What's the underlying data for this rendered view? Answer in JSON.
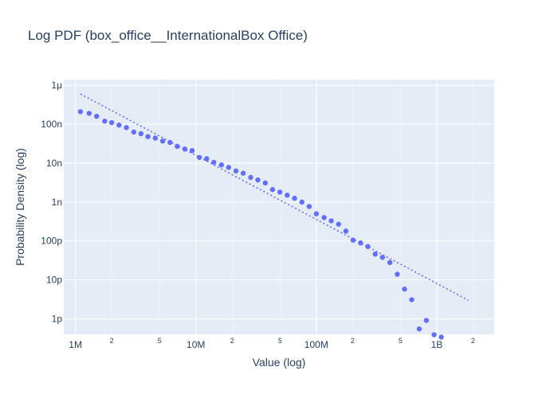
{
  "chart_data": {
    "type": "scatter",
    "title": "Log PDF (box_office__InternationalBox Office)",
    "xlabel": "Value (log)",
    "ylabel": "Probability Density (log)",
    "x_scale": "log",
    "y_scale": "log",
    "xlim": [
      800000,
      3000000000
    ],
    "ylim": [
      4e-13,
      1.4e-06
    ],
    "grid": true,
    "colors": {
      "plot_bg": "#e5ecf6",
      "grid": "#ffffff",
      "marker": "#636efa",
      "text": "#2a3f5f"
    },
    "x_ticks": [
      {
        "value": 1000000,
        "label": "1M"
      },
      {
        "value": 10000000,
        "label": "10M"
      },
      {
        "value": 100000000,
        "label": "100M"
      },
      {
        "value": 1000000000,
        "label": "1B"
      }
    ],
    "x_minor_ticks": [
      {
        "value": 2000000,
        "label": "2"
      },
      {
        "value": 5000000,
        "label": "5"
      },
      {
        "value": 20000000,
        "label": "2"
      },
      {
        "value": 50000000,
        "label": "5"
      },
      {
        "value": 200000000,
        "label": "2"
      },
      {
        "value": 500000000,
        "label": "5"
      },
      {
        "value": 2000000000,
        "label": "2"
      }
    ],
    "y_ticks": [
      {
        "value": 1e-06,
        "label": "1μ"
      },
      {
        "value": 1e-07,
        "label": "100n"
      },
      {
        "value": 1e-08,
        "label": "10n"
      },
      {
        "value": 1e-09,
        "label": "1n"
      },
      {
        "value": 1e-10,
        "label": "100p"
      },
      {
        "value": 1e-11,
        "label": "10p"
      },
      {
        "value": 1e-12,
        "label": "1p"
      }
    ],
    "series": [
      {
        "mode": "markers",
        "color": "#636efa",
        "points": [
          [
            1100000,
            2.1e-07
          ],
          [
            1300000,
            1.9e-07
          ],
          [
            1500000,
            1.6e-07
          ],
          [
            1750000,
            1.2e-07
          ],
          [
            2000000,
            1.1e-07
          ],
          [
            2300000,
            9.5e-08
          ],
          [
            2650000,
            8.2e-08
          ],
          [
            3050000,
            6.3e-08
          ],
          [
            3500000,
            5.7e-08
          ],
          [
            4000000,
            4.8e-08
          ],
          [
            4600000,
            4.4e-08
          ],
          [
            5300000,
            3.7e-08
          ],
          [
            6100000,
            3.4e-08
          ],
          [
            7000000,
            2.7e-08
          ],
          [
            8100000,
            2.3e-08
          ],
          [
            9300000,
            2.1e-08
          ],
          [
            10700000,
            1.4e-08
          ],
          [
            12300000,
            1.3e-08
          ],
          [
            14100000,
            1.05e-08
          ],
          [
            16300000,
            9e-09
          ],
          [
            18700000,
            7.8e-09
          ],
          [
            21500000,
            6.3e-09
          ],
          [
            24700000,
            5.5e-09
          ],
          [
            28500000,
            4.3e-09
          ],
          [
            32700000,
            3.7e-09
          ],
          [
            37700000,
            3.1e-09
          ],
          [
            43300000,
            2.1e-09
          ],
          [
            49800000,
            1.8e-09
          ],
          [
            57300000,
            1.5e-09
          ],
          [
            66000000,
            1.25e-09
          ],
          [
            75900000,
            1e-09
          ],
          [
            87300000,
            7.7e-10
          ],
          [
            100000000,
            5e-10
          ],
          [
            116000000,
            4e-10
          ],
          [
            133000000,
            3.3e-10
          ],
          [
            153000000,
            2.7e-10
          ],
          [
            176000000,
            1.8e-10
          ],
          [
            202000000,
            1.05e-10
          ],
          [
            233000000,
            8.9e-11
          ],
          [
            268000000,
            7.2e-11
          ],
          [
            308000000,
            4.6e-11
          ],
          [
            354000000,
            3.8e-11
          ],
          [
            408000000,
            2.8e-11
          ],
          [
            470000000,
            1.4e-11
          ],
          [
            540000000,
            5.8e-12
          ],
          [
            620000000,
            3.1e-12
          ],
          [
            715000000,
            5.5e-13
          ],
          [
            820000000,
            9.1e-13
          ],
          [
            950000000,
            3.9e-13
          ],
          [
            1090000000,
            3.4e-13
          ]
        ]
      },
      {
        "mode": "lines",
        "dash": "dot",
        "color": "#636efa",
        "points": [
          [
            1100000,
            6e-07
          ],
          [
            1830000000,
            3e-12
          ]
        ]
      }
    ]
  }
}
